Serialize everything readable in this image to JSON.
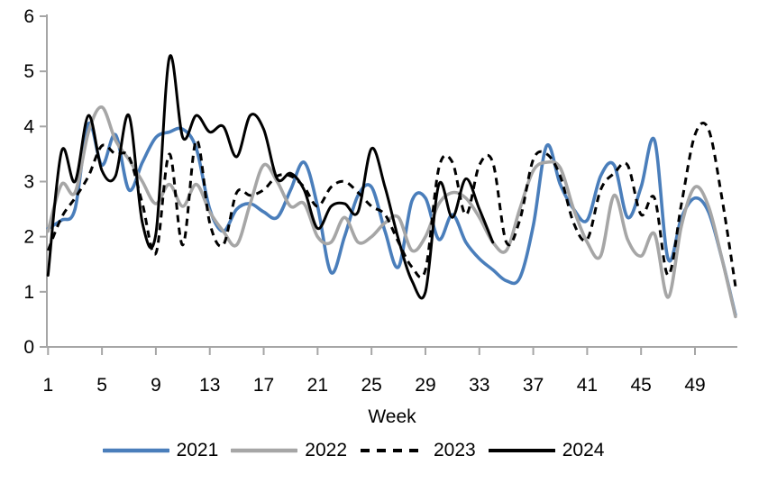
{
  "chart_data": {
    "type": "line",
    "title": "",
    "xlabel": "Week",
    "ylabel": "",
    "ylim": [
      0,
      6
    ],
    "yticks": [
      0,
      1,
      2,
      3,
      4,
      5,
      6
    ],
    "xticks": [
      1,
      5,
      9,
      13,
      17,
      21,
      25,
      29,
      33,
      37,
      41,
      45,
      49
    ],
    "x_range": [
      1,
      52
    ],
    "grid": false,
    "legend_position": "bottom",
    "axis_color": "#a6a6a6",
    "background": "#ffffff",
    "series": [
      {
        "name": "2021",
        "color": "#4a7ebb",
        "style": "solid",
        "start_week": 1,
        "values": [
          2.15,
          2.3,
          2.5,
          4.05,
          3.3,
          3.85,
          2.85,
          3.35,
          3.8,
          3.9,
          3.95,
          3.6,
          2.5,
          2.1,
          2.5,
          2.6,
          2.45,
          2.35,
          2.85,
          3.35,
          2.55,
          1.35,
          2.0,
          2.75,
          2.9,
          2.1,
          1.45,
          2.65,
          2.7,
          1.95,
          2.4,
          1.9,
          1.6,
          1.4,
          1.2,
          1.25,
          2.2,
          3.65,
          2.95,
          2.5,
          2.3,
          3.1,
          3.3,
          2.35,
          2.9,
          3.75,
          1.6,
          2.35,
          2.7,
          2.45,
          1.6,
          0.58
        ]
      },
      {
        "name": "2022",
        "color": "#a6a6a6",
        "style": "solid",
        "start_week": 1,
        "values": [
          2.1,
          2.95,
          2.8,
          3.9,
          4.35,
          3.75,
          3.4,
          3.0,
          2.6,
          2.95,
          2.55,
          2.95,
          2.45,
          2.1,
          1.85,
          2.6,
          3.3,
          3.0,
          2.55,
          2.6,
          2.0,
          1.9,
          2.35,
          1.9,
          2.0,
          2.25,
          2.35,
          1.75,
          2.0,
          2.6,
          2.8,
          2.7,
          2.35,
          1.9,
          1.75,
          2.5,
          3.2,
          3.35,
          3.25,
          2.5,
          1.9,
          1.65,
          2.75,
          1.95,
          1.65,
          2.05,
          0.9,
          2.2,
          2.9,
          2.55,
          1.6,
          0.55
        ]
      },
      {
        "name": "2023",
        "color": "#000000",
        "style": "dashed",
        "start_week": 1,
        "values": [
          1.75,
          2.35,
          2.7,
          3.1,
          3.65,
          3.5,
          3.45,
          2.6,
          1.7,
          3.5,
          1.85,
          3.75,
          2.25,
          1.85,
          2.8,
          2.75,
          2.85,
          3.1,
          3.1,
          2.9,
          2.55,
          2.9,
          3.0,
          2.8,
          2.55,
          2.4,
          1.9,
          1.45,
          1.4,
          3.25,
          3.35,
          2.4,
          3.3,
          3.35,
          1.9,
          2.3,
          3.4,
          3.5,
          3.1,
          2.25,
          1.95,
          2.85,
          3.15,
          3.3,
          2.4,
          2.7,
          1.3,
          2.6,
          3.85,
          3.95,
          2.7,
          1.1
        ]
      },
      {
        "name": "2024",
        "color": "#000000",
        "style": "solid",
        "start_week": 1,
        "values": [
          1.3,
          3.55,
          3.0,
          4.2,
          3.2,
          3.1,
          4.2,
          2.25,
          2.05,
          5.25,
          3.8,
          4.2,
          3.9,
          4.0,
          3.45,
          4.2,
          3.95,
          3.05,
          3.15,
          2.85,
          2.15,
          2.55,
          2.6,
          2.45,
          3.6,
          2.9,
          1.95,
          1.2,
          1.0,
          2.95,
          2.35,
          3.05,
          2.5,
          1.9
        ]
      }
    ]
  }
}
